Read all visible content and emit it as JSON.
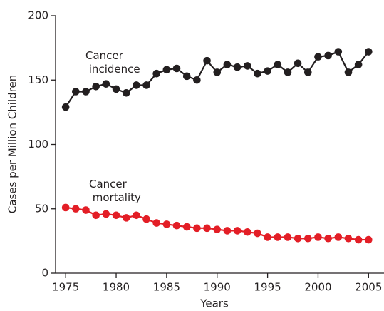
{
  "chart_data": {
    "type": "line",
    "x": [
      1975,
      1976,
      1977,
      1978,
      1979,
      1980,
      1981,
      1982,
      1983,
      1984,
      1985,
      1986,
      1987,
      1988,
      1989,
      1990,
      1991,
      1992,
      1993,
      1994,
      1995,
      1996,
      1997,
      1998,
      1999,
      2000,
      2001,
      2002,
      2003,
      2004,
      2005
    ],
    "series": [
      {
        "name": "Cancer incidence",
        "color": "#231f20",
        "values": [
          129,
          141,
          141,
          145,
          147,
          143,
          140,
          146,
          146,
          155,
          158,
          159,
          153,
          150,
          165,
          156,
          162,
          160,
          161,
          155,
          157,
          162,
          156,
          163,
          156,
          168,
          169,
          172,
          156,
          162,
          172
        ]
      },
      {
        "name": "Cancer mortality",
        "color": "#e31e26",
        "values": [
          51,
          50,
          49,
          45,
          46,
          45,
          43,
          45,
          42,
          39,
          38,
          37,
          36,
          35,
          35,
          34,
          33,
          33,
          32,
          31,
          28,
          28,
          28,
          27,
          27,
          28,
          27,
          28,
          27,
          26,
          26
        ]
      }
    ],
    "xlabel": "Years",
    "ylabel": "Cases per Million Children",
    "xlim": [
      1974,
      2006.6
    ],
    "xticks": [
      1975,
      1980,
      1985,
      1990,
      1995,
      2000,
      2005
    ],
    "ylim": [
      0,
      200
    ],
    "yticks": [
      0,
      50,
      100,
      150,
      200
    ]
  }
}
